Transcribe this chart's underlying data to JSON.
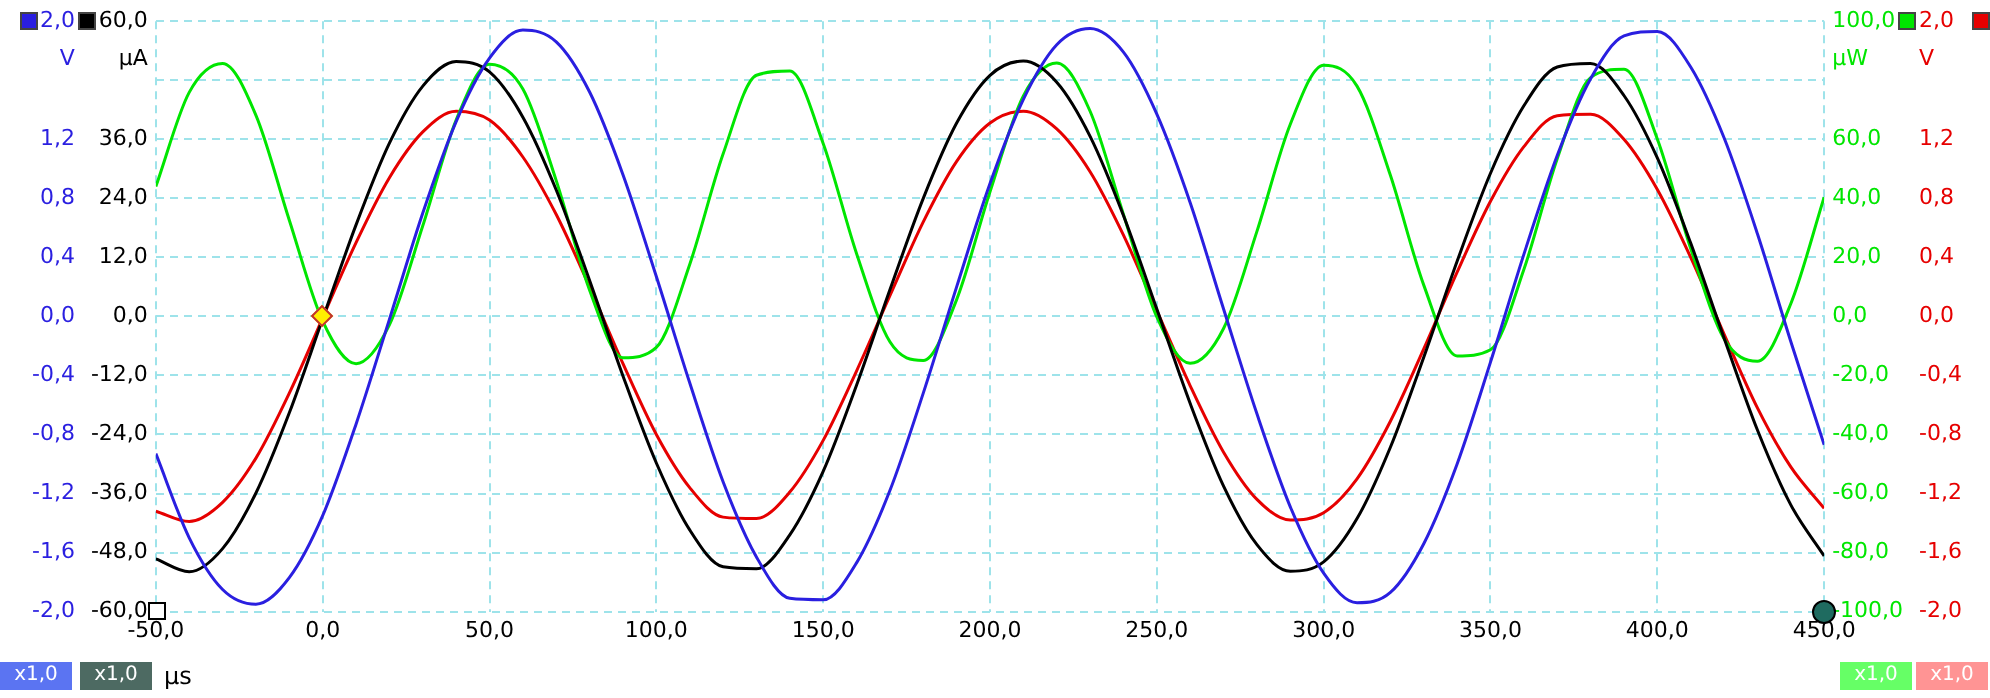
{
  "chart_data": {
    "type": "line",
    "xlabel": "µs",
    "ylabel": "V",
    "y2label": "µA",
    "y3label": "µW",
    "x": [
      -50,
      -40,
      -30,
      -20,
      -10,
      0,
      10,
      20,
      30,
      40,
      50,
      60,
      70,
      80,
      90,
      100,
      110,
      120,
      130,
      140,
      150,
      160,
      170,
      180,
      190,
      200,
      210,
      220,
      230,
      240,
      250,
      260,
      270,
      280,
      290,
      300,
      310,
      320,
      330,
      340,
      350,
      360,
      370,
      380,
      390,
      400,
      410,
      420,
      430,
      440,
      450
    ],
    "series": [
      {
        "color": "#2a1fe0",
        "axis": "y",
        "values": [
          -0.93,
          -1.5,
          -1.85,
          -1.95,
          -1.77,
          -1.35,
          -0.73,
          -0.02,
          0.7,
          1.32,
          1.75,
          1.94,
          1.86,
          1.52,
          0.96,
          0.27,
          -0.45,
          -1.12,
          -1.63,
          -1.91,
          -1.92,
          -1.67,
          -1.18,
          -0.52,
          0.2,
          0.9,
          1.47,
          1.84,
          1.95,
          1.79,
          1.37,
          0.77,
          0.05,
          -0.66,
          -1.29,
          -1.74,
          -1.94,
          -1.87,
          -1.54,
          -1.0,
          -0.31,
          0.42,
          1.09,
          1.61,
          1.9,
          1.93,
          1.69,
          1.21,
          0.56,
          -0.17,
          -0.87
        ]
      },
      {
        "color": "#000000",
        "axis": "y2",
        "values": [
          -49.3,
          -51.9,
          -47.2,
          -35.9,
          -19.6,
          -0.5,
          18.6,
          35.2,
          46.8,
          51.8,
          49.7,
          40.5,
          25.7,
          7.3,
          -12.1,
          -29.8,
          -43.4,
          -50.9,
          -51.3,
          -44.4,
          -31.5,
          -14.0,
          5.4,
          24.0,
          39.3,
          49.0,
          51.9,
          47.6,
          36.6,
          20.5,
          1.5,
          -17.7,
          -34.5,
          -46.4,
          -51.8,
          -49.9,
          -41.1,
          -26.6,
          -8.3,
          11.2,
          29.1,
          42.8,
          50.7,
          51.4,
          44.9,
          32.2,
          14.9,
          -4.4,
          -23.1,
          -38.3,
          -48.7
        ]
      },
      {
        "color": "#00e600",
        "axis": "y3",
        "values": [
          44.0,
          75.9,
          85.7,
          68.1,
          32.6,
          -1.6,
          -16.0,
          -2.9,
          30.7,
          66.5,
          85.4,
          77.0,
          46.0,
          8.9,
          -14.0,
          -10.5,
          17.6,
          55.0,
          81.7,
          83.1,
          58.6,
          21.3,
          -8.6,
          -14.9,
          5.7,
          42.2,
          74.7,
          85.8,
          69.5,
          34.5,
          -0.2,
          -15.9,
          -4.1,
          28.8,
          65.1,
          85.1,
          78.0,
          47.8,
          10.6,
          -13.4,
          -11.3,
          15.9,
          53.4,
          80.9,
          83.7,
          60.1,
          23.0,
          -7.6,
          -15.2,
          4.3,
          40.4
        ]
      },
      {
        "color": "#e60000",
        "values": [
          -1.32,
          -1.39,
          -1.26,
          -0.96,
          -0.52,
          null,
          0.5,
          0.94,
          1.25,
          1.39,
          1.33,
          1.08,
          0.69,
          0.2,
          -0.32,
          -0.8,
          -1.16,
          -1.36,
          -1.37,
          -1.19,
          -0.84,
          -0.37,
          0.14,
          0.64,
          1.05,
          1.31,
          1.39,
          1.27,
          0.98,
          0.55,
          0.04,
          -0.47,
          -0.92,
          -1.24,
          -1.38,
          -1.33,
          -1.1,
          -0.71,
          -0.22,
          0.3,
          0.78,
          1.15,
          1.36,
          1.37,
          1.2,
          0.86,
          0.4,
          -0.12,
          -0.62,
          -1.02,
          -1.3
        ]
      }
    ],
    "xlim": [
      -50,
      450
    ],
    "xticks": [
      {
        "value": -50,
        "label": "-50,0"
      },
      {
        "value": 0,
        "label": "0,0"
      },
      {
        "value": 50,
        "label": "50,0"
      },
      {
        "value": 100,
        "label": "100,0"
      },
      {
        "value": 150,
        "label": "150,0"
      },
      {
        "value": 200,
        "label": "200,0"
      },
      {
        "value": 250,
        "label": "250,0"
      },
      {
        "value": 300,
        "label": "300,0"
      },
      {
        "value": 350,
        "label": "350,0"
      },
      {
        "value": 400,
        "label": "400,0"
      },
      {
        "value": 450,
        "label": "450,0"
      }
    ],
    "ylim": [
      -2,
      2
    ],
    "yticks": [
      {
        "value": -2,
        "label": "-2,0"
      },
      {
        "value": -1.6,
        "label": "-1,6"
      },
      {
        "value": -1.2,
        "label": "-1,2"
      },
      {
        "value": -0.8,
        "label": "-0,8"
      },
      {
        "value": -0.4,
        "label": "-0,4"
      },
      {
        "value": 0,
        "label": "0,0"
      },
      {
        "value": 0.4,
        "label": "0,4"
      },
      {
        "value": 0.8,
        "label": "0,8"
      },
      {
        "value": 1.2,
        "label": "1,2"
      },
      {
        "value": 1.6,
        "label": null
      },
      {
        "value": 2,
        "label": "2,0"
      }
    ],
    "y2lim": [
      -60,
      60
    ],
    "y2ticks": [
      {
        "value": -60,
        "label": "-60,0"
      },
      {
        "value": -48,
        "label": "-48,0"
      },
      {
        "value": -36,
        "label": "-36,0"
      },
      {
        "value": -24,
        "label": "-24,0"
      },
      {
        "value": -12,
        "label": "-12,0"
      },
      {
        "value": 0,
        "label": "0,0"
      },
      {
        "value": 12,
        "label": "12,0"
      },
      {
        "value": 24,
        "label": "24,0"
      },
      {
        "value": 36,
        "label": "36,0"
      },
      {
        "value": 48,
        "label": null
      },
      {
        "value": 60,
        "label": "60,0"
      }
    ],
    "y3lim": [
      -100,
      100
    ],
    "y3ticks": [
      {
        "value": -100,
        "label": "-100,0"
      },
      {
        "value": -80,
        "label": "-80,0"
      },
      {
        "value": -60,
        "label": "-60,0"
      },
      {
        "value": -40,
        "label": "-40,0"
      },
      {
        "value": -20,
        "label": "-20,0"
      },
      {
        "value": 0,
        "label": "0,0"
      },
      {
        "value": 20,
        "label": "20,0"
      },
      {
        "value": 40,
        "label": "40,0"
      },
      {
        "value": 60,
        "label": "60,0"
      },
      {
        "value": 80,
        "label": null
      },
      {
        "value": 100,
        "label": "100,0"
      }
    ],
    "annotations": [
      "x1,0",
      "x1,0",
      "x1,0",
      "x1,0"
    ],
    "grid": true,
    "legend": false,
    "marker": "none",
    "line_style": "solid"
  }
}
